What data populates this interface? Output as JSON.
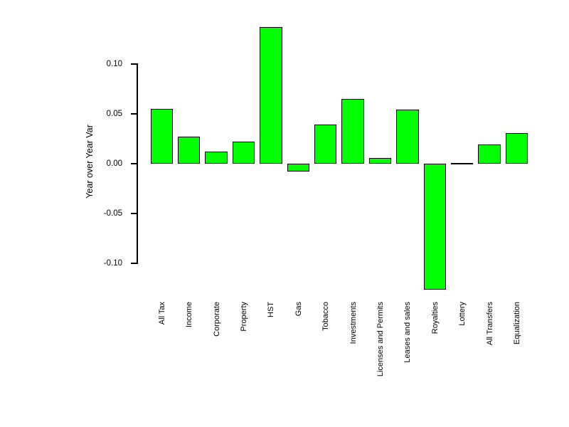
{
  "chart_data": {
    "type": "bar",
    "title": "",
    "xlabel": "",
    "ylabel": "Year over Year Var",
    "categories": [
      "All Tax",
      "Income",
      "Corporate",
      "Property",
      "HST",
      "Gas",
      "Tobacco",
      "Investments",
      "Licenses and Permits",
      "Leases and sales",
      "Royalties",
      "Lottery",
      "All Transfers",
      "Equalization"
    ],
    "values": [
      0.055,
      0.027,
      0.012,
      0.022,
      0.137,
      -0.008,
      0.039,
      0.065,
      0.006,
      0.054,
      -0.127,
      0.0,
      0.019,
      0.031
    ],
    "yticks": [
      0.1,
      0.05,
      0.0,
      -0.05,
      -0.1
    ],
    "ytick_labels": [
      "0.10",
      "0.05",
      "0.00",
      "-0.05",
      "-0.10"
    ],
    "ylim": [
      -0.13,
      0.14
    ],
    "grid": false,
    "legend": null,
    "bar_color": "#00FF00",
    "bar_border_color": "#000000",
    "axis_color": "#000000",
    "text_color": "#000000",
    "background_color": "#FFFFFF"
  }
}
